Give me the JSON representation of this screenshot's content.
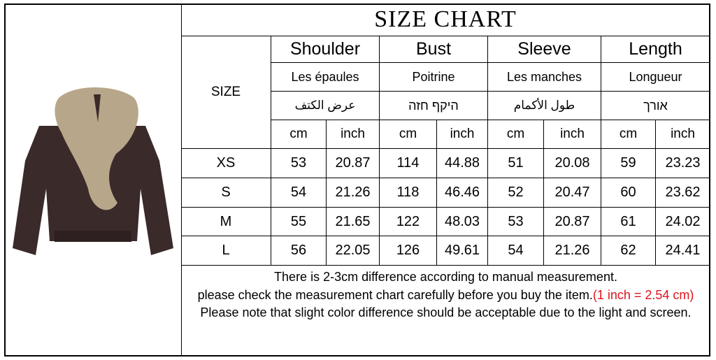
{
  "title": "SIZE CHART",
  "size_label": "SIZE",
  "columns": [
    {
      "en": "Shoulder",
      "fr": "Les épaules",
      "ar": "عرض الكتف",
      "he_visual": null
    },
    {
      "en": "Bust",
      "fr": "Poitrine",
      "ar": null,
      "he_visual": "הזח ףקיה"
    },
    {
      "en": "Sleeve",
      "fr": "Les manches",
      "ar": "طول الأكمام",
      "he_visual": null
    },
    {
      "en": "Length",
      "fr": "Longueur",
      "ar": null,
      "he_visual": "ךרוא"
    }
  ],
  "units": {
    "cm": "cm",
    "inch": "inch"
  },
  "rows": [
    {
      "size": "XS",
      "values": [
        "53",
        "20.87",
        "114",
        "44.88",
        "51",
        "20.08",
        "59",
        "23.23"
      ]
    },
    {
      "size": "S",
      "values": [
        "54",
        "21.26",
        "118",
        "46.46",
        "52",
        "20.47",
        "60",
        "23.62"
      ]
    },
    {
      "size": "M",
      "values": [
        "55",
        "21.65",
        "122",
        "48.03",
        "53",
        "20.87",
        "61",
        "24.02"
      ]
    },
    {
      "size": "L",
      "values": [
        "56",
        "22.05",
        "126",
        "49.61",
        "54",
        "21.26",
        "62",
        "24.41"
      ]
    }
  ],
  "notes": {
    "line1": "There is 2-3cm difference according to manual measurement.",
    "line2": "please check the measurement chart carefully before you buy the item.",
    "line2_red": "(1 inch = 2.54 cm)",
    "line3": "Please note that slight color difference should be acceptable due to the light and screen."
  },
  "colors": {
    "note_highlight": "#e0141e",
    "fur": "#b8a68a",
    "leather": "#3a2a2a"
  }
}
